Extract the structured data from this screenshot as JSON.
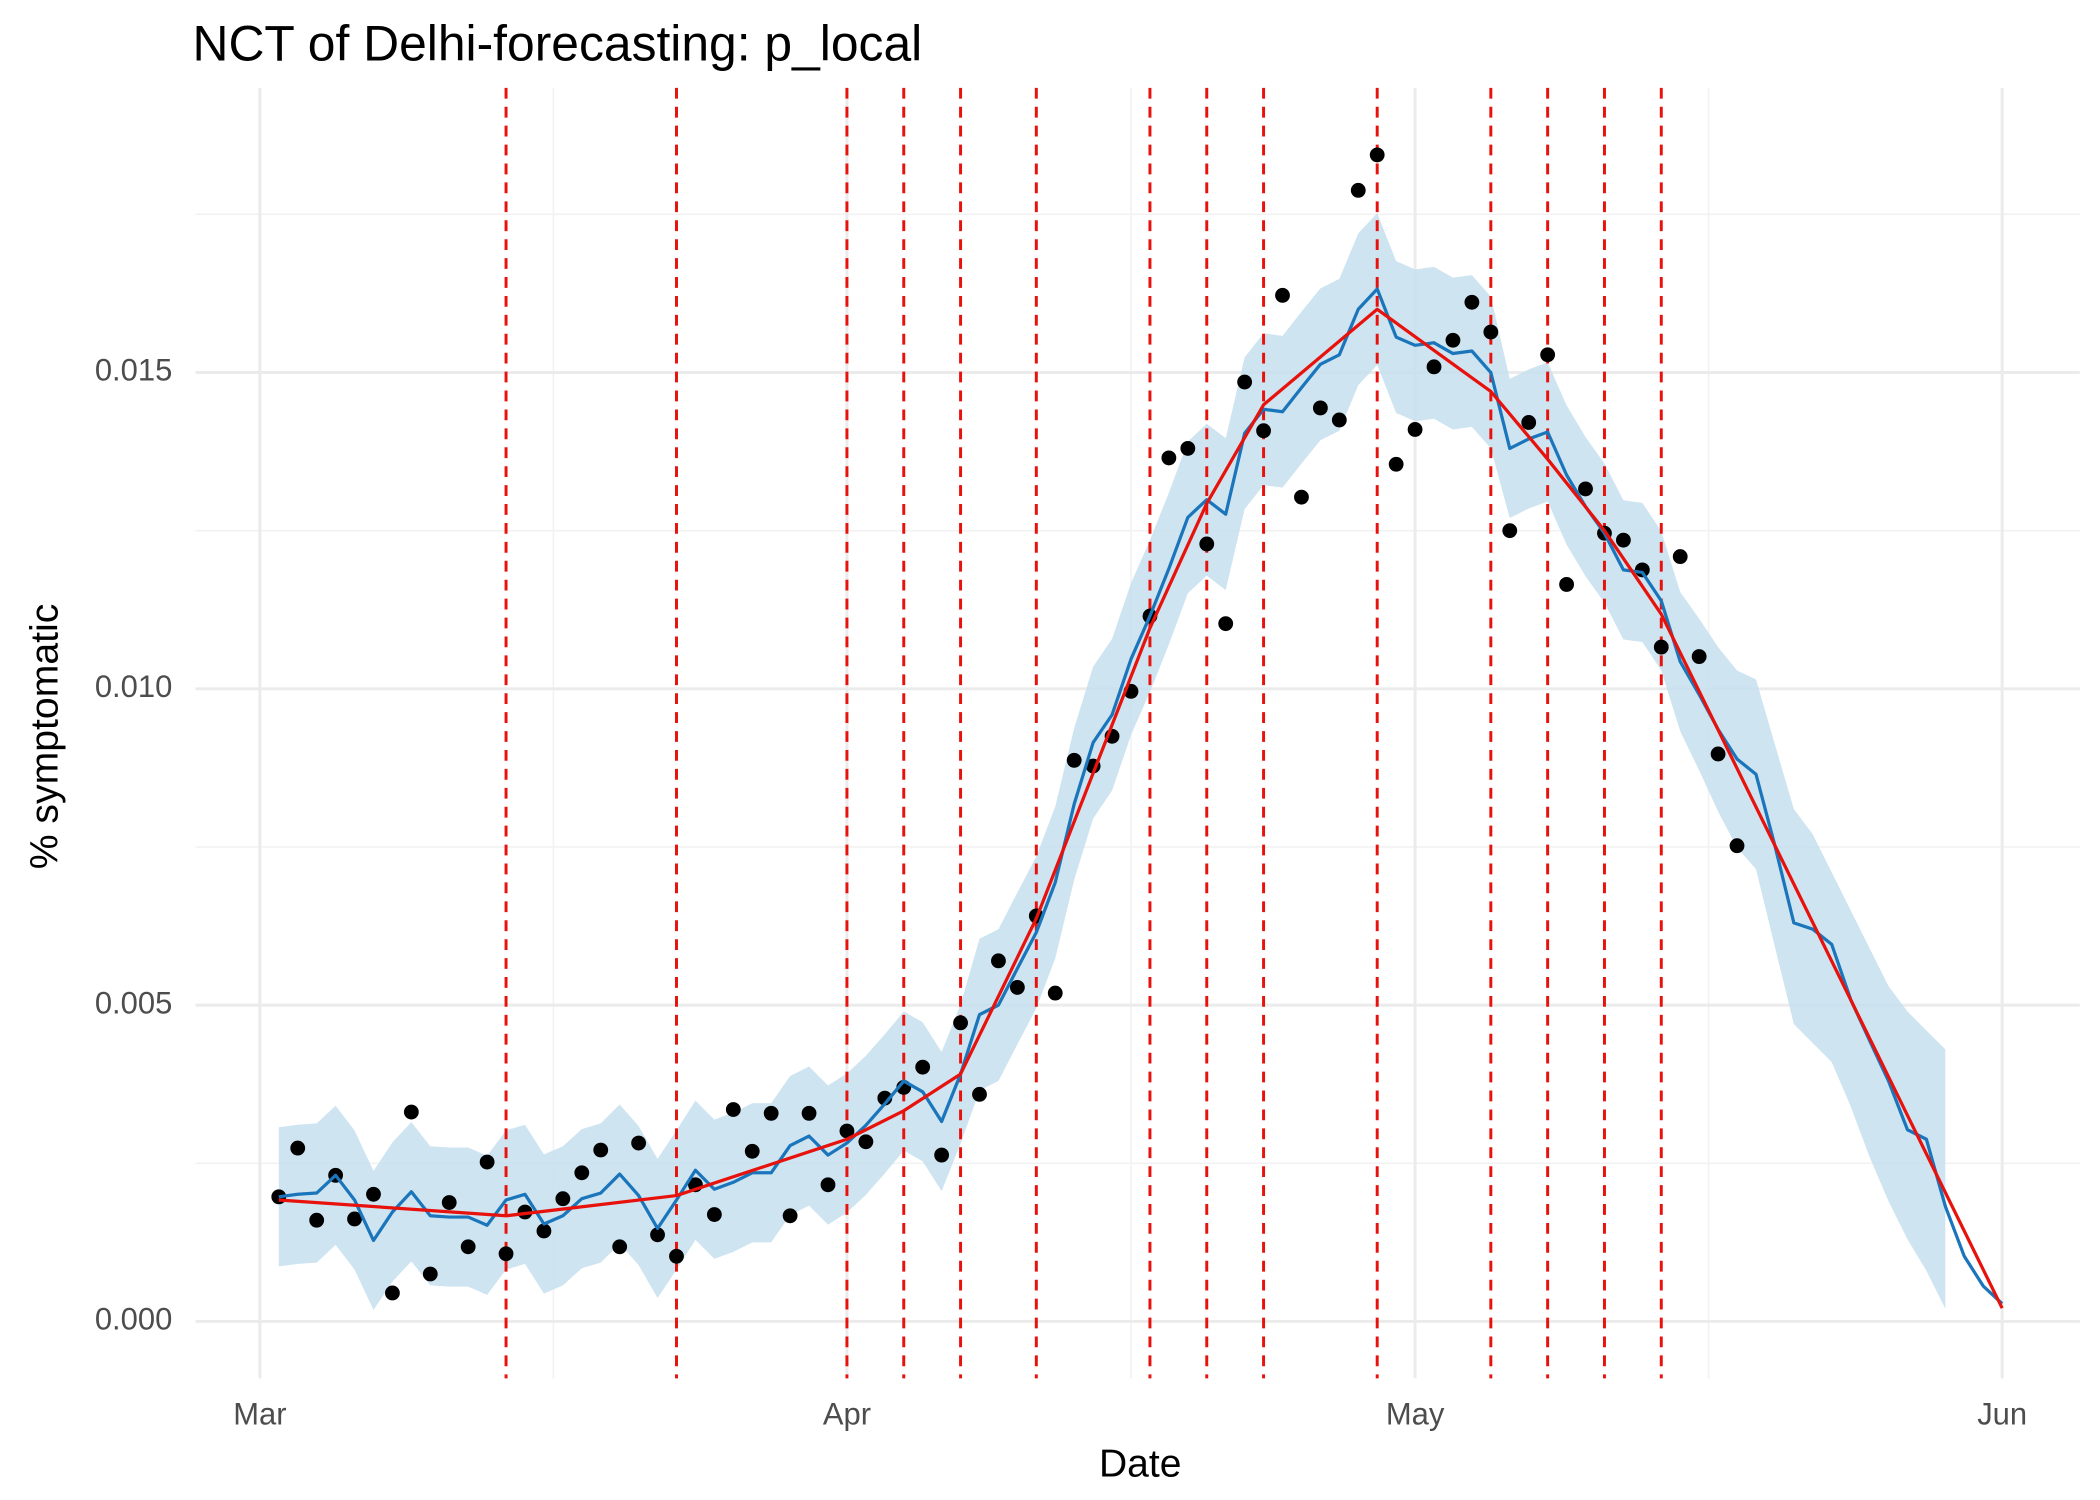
{
  "chart_data": {
    "type": "line",
    "title": "NCT of Delhi-forecasting: p_local",
    "xlabel": "Date",
    "ylabel": "% symptomatic",
    "xlim": [
      -3.4,
      96.1
    ],
    "ylim": [
      -0.0009,
      0.0195
    ],
    "xticks": [
      {
        "value": 0,
        "label": "Mar"
      },
      {
        "value": 31,
        "label": "Apr"
      },
      {
        "value": 61,
        "label": "May"
      },
      {
        "value": 92,
        "label": "Jun"
      }
    ],
    "yticks": [
      {
        "value": 0,
        "label": "0.000"
      },
      {
        "value": 0.005,
        "label": "0.005"
      },
      {
        "value": 0.01,
        "label": "0.010"
      },
      {
        "value": 0.015,
        "label": "0.015"
      }
    ],
    "xminor": [
      15.5,
      46,
      76.5
    ],
    "yminor": [
      0.0025,
      0.0075,
      0.0125,
      0.0175
    ],
    "grid": true,
    "band": {
      "color": "#c5dfee",
      "x": [
        1,
        2,
        3,
        4,
        5,
        6,
        7,
        8,
        9,
        10,
        11,
        12,
        13,
        14,
        15,
        16,
        17,
        18,
        19,
        20,
        21,
        22,
        23,
        24,
        25,
        26,
        27,
        28,
        29,
        30,
        31,
        32,
        33,
        34,
        35,
        36,
        37,
        38,
        39,
        40,
        41,
        42,
        43,
        44,
        45,
        46,
        47,
        48,
        49,
        50,
        51,
        52,
        53,
        54,
        55,
        56,
        57,
        58,
        59,
        60,
        61,
        62,
        63,
        64,
        65,
        66,
        67,
        68,
        69,
        70,
        71,
        72,
        73,
        74,
        75,
        76,
        77,
        78,
        79,
        80,
        81,
        82,
        83,
        84,
        85,
        86,
        87,
        88,
        89
      ],
      "lower": [
        0.00087,
        0.00091,
        0.00093,
        0.00121,
        0.00082,
        0.00018,
        0.00063,
        0.00095,
        0.00057,
        0.00055,
        0.00055,
        0.00042,
        0.00082,
        0.00091,
        0.00044,
        0.00057,
        0.00084,
        0.00093,
        0.00123,
        0.00089,
        0.00037,
        0.00082,
        0.00129,
        0.00099,
        0.0011,
        0.00125,
        0.00125,
        0.00168,
        0.00183,
        0.00153,
        0.00172,
        0.002,
        0.00234,
        0.0027,
        0.00253,
        0.00206,
        0.00281,
        0.00365,
        0.0038,
        0.00438,
        0.00495,
        0.00574,
        0.00698,
        0.00795,
        0.00839,
        0.00927,
        0.00995,
        0.0107,
        0.01151,
        0.01179,
        0.01156,
        0.01284,
        0.01322,
        0.01318,
        0.01356,
        0.01393,
        0.01408,
        0.0148,
        0.01512,
        0.01436,
        0.01423,
        0.01427,
        0.0141,
        0.01414,
        0.0138,
        0.0127,
        0.01285,
        0.01296,
        0.01228,
        0.01178,
        0.01136,
        0.01078,
        0.01074,
        0.01029,
        0.00933,
        0.00871,
        0.00806,
        0.00749,
        0.00715,
        0.00592,
        0.0047,
        0.0044,
        0.0041,
        0.0034,
        0.0026,
        0.0019,
        0.0013,
        0.0008,
        0.0002
      ],
      "upper": [
        0.00307,
        0.00311,
        0.00313,
        0.00341,
        0.00302,
        0.00238,
        0.00283,
        0.00315,
        0.00277,
        0.00275,
        0.00275,
        0.00262,
        0.00302,
        0.00311,
        0.00264,
        0.00277,
        0.00304,
        0.00313,
        0.00343,
        0.00309,
        0.00257,
        0.00302,
        0.00349,
        0.00319,
        0.0033,
        0.00345,
        0.00345,
        0.00388,
        0.00403,
        0.00373,
        0.00392,
        0.0042,
        0.00454,
        0.0049,
        0.00473,
        0.00426,
        0.00501,
        0.00605,
        0.0062,
        0.00678,
        0.00735,
        0.00814,
        0.00938,
        0.01035,
        0.01079,
        0.01167,
        0.01235,
        0.0131,
        0.01391,
        0.01419,
        0.01396,
        0.01524,
        0.01562,
        0.01558,
        0.01596,
        0.01633,
        0.01648,
        0.0172,
        0.01752,
        0.01676,
        0.01663,
        0.01667,
        0.0165,
        0.01654,
        0.0162,
        0.0149,
        0.01505,
        0.01516,
        0.01448,
        0.01398,
        0.01356,
        0.01298,
        0.01294,
        0.01249,
        0.01153,
        0.01111,
        0.01066,
        0.01029,
        0.01015,
        0.00912,
        0.0081,
        0.0077,
        0.0071,
        0.0065,
        0.0059,
        0.0053,
        0.0049,
        0.0046,
        0.0043
      ]
    },
    "line": {
      "color": "#1b75bb",
      "x": [
        1,
        2,
        3,
        4,
        5,
        6,
        7,
        8,
        9,
        10,
        11,
        12,
        13,
        14,
        15,
        16,
        17,
        18,
        19,
        20,
        21,
        22,
        23,
        24,
        25,
        26,
        27,
        28,
        29,
        30,
        31,
        32,
        33,
        34,
        35,
        36,
        37,
        38,
        39,
        40,
        41,
        42,
        43,
        44,
        45,
        46,
        47,
        48,
        49,
        50,
        51,
        52,
        53,
        54,
        55,
        56,
        57,
        58,
        59,
        60,
        61,
        62,
        63,
        64,
        65,
        66,
        67,
        68,
        69,
        70,
        71,
        72,
        73,
        74,
        75,
        76,
        77,
        78,
        79,
        80,
        81,
        82,
        83,
        84,
        85,
        86,
        87,
        88,
        89,
        90,
        91,
        92
      ],
      "values": [
        0.00197,
        0.00201,
        0.00203,
        0.00231,
        0.00192,
        0.00128,
        0.00173,
        0.00205,
        0.00167,
        0.00165,
        0.00165,
        0.00152,
        0.00192,
        0.00201,
        0.00154,
        0.00167,
        0.00194,
        0.00203,
        0.00233,
        0.00199,
        0.00147,
        0.00192,
        0.00239,
        0.00209,
        0.0022,
        0.00235,
        0.00235,
        0.00278,
        0.00293,
        0.00263,
        0.00282,
        0.0031,
        0.00344,
        0.0038,
        0.00363,
        0.00316,
        0.00391,
        0.00485,
        0.005,
        0.00558,
        0.00615,
        0.00694,
        0.00818,
        0.00915,
        0.00959,
        0.01047,
        0.01115,
        0.0119,
        0.01271,
        0.01299,
        0.01276,
        0.01404,
        0.01442,
        0.01438,
        0.01476,
        0.01513,
        0.01528,
        0.016,
        0.01632,
        0.01556,
        0.01543,
        0.01547,
        0.0153,
        0.01534,
        0.015,
        0.0138,
        0.01395,
        0.01406,
        0.01338,
        0.01288,
        0.01246,
        0.01188,
        0.01184,
        0.01139,
        0.01043,
        0.00991,
        0.00936,
        0.00889,
        0.00865,
        0.00752,
        0.0063,
        0.0062,
        0.00596,
        0.00509,
        0.00444,
        0.0038,
        0.00303,
        0.00288,
        0.00182,
        0.00103,
        0.00056,
        0.00028
      ]
    },
    "fit": {
      "color": "#e8120c",
      "x": [
        1,
        13,
        22,
        31,
        34,
        37,
        41,
        47,
        50,
        53,
        59,
        65,
        68,
        71,
        74,
        92
      ],
      "values": [
        0.00192,
        0.00167,
        0.00199,
        0.00288,
        0.00333,
        0.00391,
        0.00637,
        0.01096,
        0.01293,
        0.01449,
        0.016,
        0.0147,
        0.01363,
        0.0125,
        0.01118,
        0.00021
      ]
    },
    "points": {
      "color": "#000000",
      "x": [
        1,
        2,
        3,
        4,
        5,
        6,
        7,
        8,
        9,
        10,
        11,
        12,
        13,
        14,
        15,
        16,
        17,
        18,
        19,
        20,
        21,
        22,
        23,
        24,
        25,
        26,
        27,
        28,
        29,
        30,
        31,
        32,
        33,
        34,
        35,
        36,
        37,
        38,
        39,
        40,
        41,
        42,
        43,
        44,
        45,
        46,
        47,
        48,
        49,
        50,
        51,
        52,
        53,
        54,
        55,
        56,
        57,
        58,
        59,
        60,
        61,
        62,
        63,
        64,
        65,
        66,
        67,
        68,
        69,
        70,
        71,
        72,
        73,
        74,
        75,
        76,
        77,
        78
      ],
      "values": [
        0.00197,
        0.00274,
        0.0016,
        0.00231,
        0.00162,
        0.00201,
        0.00045,
        0.00331,
        0.00075,
        0.00188,
        0.00118,
        0.00252,
        0.00107,
        0.00173,
        0.00143,
        0.00194,
        0.00235,
        0.00271,
        0.00118,
        0.00282,
        0.00137,
        0.00103,
        0.00216,
        0.00169,
        0.00335,
        0.00269,
        0.00329,
        0.00167,
        0.00329,
        0.00216,
        0.00301,
        0.00284,
        0.00353,
        0.0037,
        0.00402,
        0.00263,
        0.00472,
        0.00359,
        0.0057,
        0.00528,
        0.00641,
        0.00519,
        0.00887,
        0.00878,
        0.00925,
        0.00996,
        0.01115,
        0.01365,
        0.0138,
        0.01229,
        0.01103,
        0.01485,
        0.01408,
        0.01622,
        0.01303,
        0.01444,
        0.01425,
        0.01788,
        0.01844,
        0.01355,
        0.0141,
        0.01509,
        0.01551,
        0.01611,
        0.01564,
        0.0125,
        0.01421,
        0.01528,
        0.01165,
        0.01316,
        0.01246,
        0.01235,
        0.01188,
        0.01066,
        0.01209,
        0.01051,
        0.00897,
        0.00752
      ]
    },
    "vlines": {
      "color": "#e8120c",
      "x": [
        13,
        22,
        31,
        34,
        37,
        41,
        47,
        50,
        53,
        59,
        65,
        68,
        71,
        74
      ]
    }
  }
}
